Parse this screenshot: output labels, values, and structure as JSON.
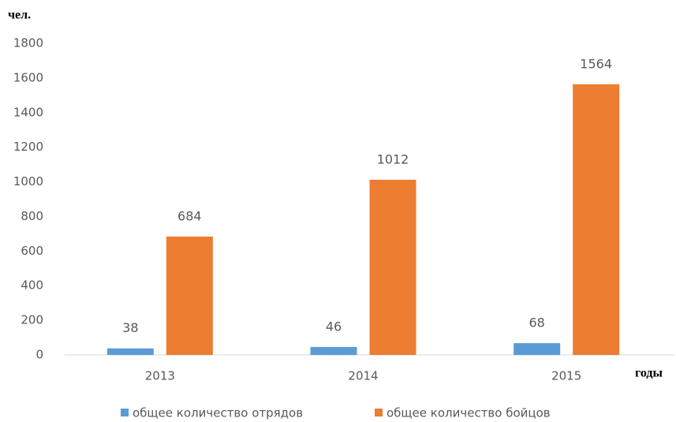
{
  "chart_data": {
    "type": "bar",
    "y_label": "чел.",
    "x_label": "годы",
    "categories": [
      "2013",
      "2014",
      "2015"
    ],
    "series": [
      {
        "name": "общее количество отрядов",
        "color": "#5b9bd5",
        "values": [
          38,
          46,
          68
        ]
      },
      {
        "name": "общее количество бойцов",
        "color": "#ed7d31",
        "values": [
          684,
          1012,
          1564
        ]
      }
    ],
    "ylim": [
      0,
      1800
    ],
    "yticks": [
      0,
      200,
      400,
      600,
      800,
      1000,
      1200,
      1400,
      1600,
      1800
    ],
    "grid": false,
    "legend": "bottom"
  }
}
